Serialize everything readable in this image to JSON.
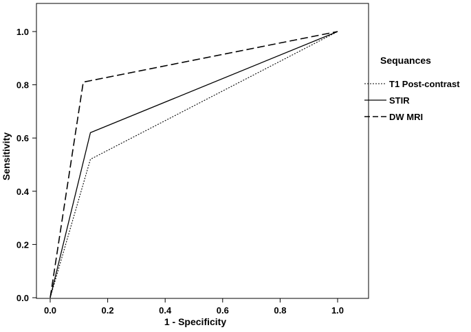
{
  "chart_data": {
    "type": "line",
    "title": "",
    "xlabel": "1 - Specificity",
    "ylabel": "Sensitivity",
    "xlim": [
      0,
      1
    ],
    "ylim": [
      0,
      1
    ],
    "xticks": [
      "0.0",
      "0.2",
      "0.4",
      "0.6",
      "0.8",
      "1.0"
    ],
    "yticks": [
      "0.0",
      "0.2",
      "0.4",
      "0.6",
      "0.8",
      "1.0"
    ],
    "grid": false,
    "legend": {
      "title": "Sequances",
      "placement": "right"
    },
    "series": [
      {
        "name": "T1 Post-contrast",
        "style": "dotted",
        "x": [
          0,
          0.14,
          1
        ],
        "y": [
          0,
          0.52,
          1
        ]
      },
      {
        "name": "STIR",
        "style": "solid",
        "x": [
          0,
          0.14,
          1
        ],
        "y": [
          0,
          0.62,
          1
        ]
      },
      {
        "name": "DW MRI",
        "style": "dashed",
        "x": [
          0,
          0.115,
          1
        ],
        "y": [
          0,
          0.81,
          1
        ]
      }
    ]
  }
}
